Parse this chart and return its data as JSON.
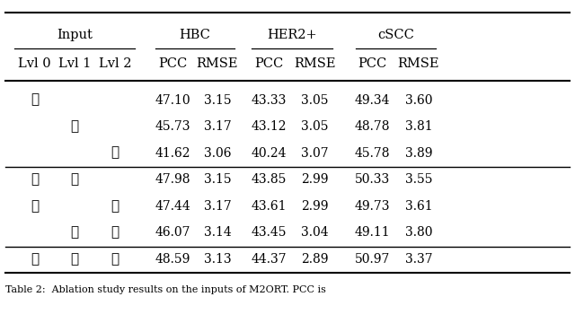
{
  "caption": "Table 2:  Ablation study results on the inputs of M2ORT. PCC is",
  "subheaders": [
    "Lvl 0",
    "Lvl 1",
    "Lvl 2",
    "PCC",
    "RMSE",
    "PCC",
    "RMSE",
    "PCC",
    "RMSE"
  ],
  "group1": [
    [
      "1",
      "",
      "",
      "47.10",
      "3.15",
      "43.33",
      "3.05",
      "49.34",
      "3.60"
    ],
    [
      "",
      "1",
      "",
      "45.73",
      "3.17",
      "43.12",
      "3.05",
      "48.78",
      "3.81"
    ],
    [
      "",
      "",
      "1",
      "41.62",
      "3.06",
      "40.24",
      "3.07",
      "45.78",
      "3.89"
    ]
  ],
  "group2": [
    [
      "1",
      "1",
      "",
      "47.98",
      "3.15",
      "43.85",
      "2.99",
      "50.33",
      "3.55"
    ],
    [
      "1",
      "",
      "1",
      "47.44",
      "3.17",
      "43.61",
      "2.99",
      "49.73",
      "3.61"
    ],
    [
      "",
      "1",
      "1",
      "46.07",
      "3.14",
      "43.45",
      "3.04",
      "49.11",
      "3.80"
    ]
  ],
  "group3": [
    [
      "1",
      "1",
      "1",
      "48.59",
      "3.13",
      "44.37",
      "2.89",
      "50.97",
      "3.37"
    ]
  ]
}
